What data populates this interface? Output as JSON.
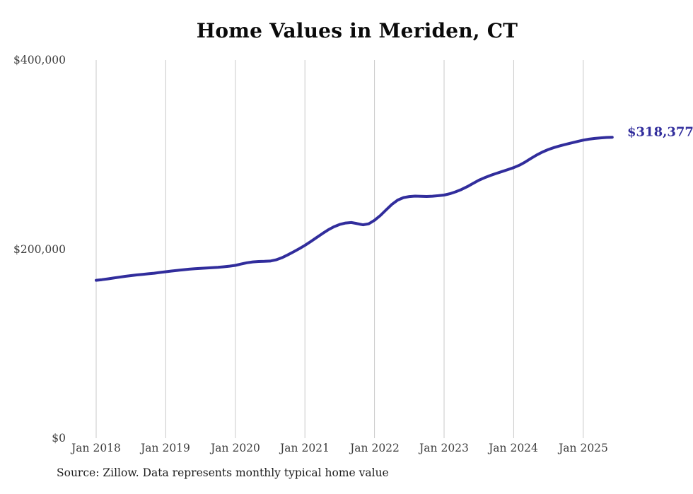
{
  "page": {
    "background": "#ffffff"
  },
  "chart": {
    "title": "Home Values in Meriden, CT",
    "end_label": "$318,377",
    "source_note": "Source: Zillow. Data represents monthly typical home value",
    "colors": {
      "line": "#312d9c",
      "end_label": "#312d9c",
      "grid": "#c9c9c9",
      "axis_text": "#3e3e3e",
      "title_text": "#0a0a0a",
      "source_text": "#1d1d1d"
    }
  },
  "chart_data": {
    "type": "line",
    "title": "Home Values in Meriden, CT",
    "xlabel": "",
    "ylabel": "",
    "ylim": [
      0,
      400000
    ],
    "grid": "vertical-only",
    "legend": "none",
    "y_ticks": [
      {
        "value": 0,
        "label": "$0"
      },
      {
        "value": 200000,
        "label": "$200,000"
      },
      {
        "value": 400000,
        "label": "$400,000"
      }
    ],
    "x_tick_labels": [
      "Jan 2018",
      "Jan 2019",
      "Jan 2020",
      "Jan 2021",
      "Jan 2022",
      "Jan 2023",
      "Jan 2024",
      "Jan 2025"
    ],
    "series": [
      {
        "name": "Monthly typical home value",
        "color": "#312d9c",
        "x": [
          "2018-01",
          "2018-02",
          "2018-03",
          "2018-04",
          "2018-05",
          "2018-06",
          "2018-07",
          "2018-08",
          "2018-09",
          "2018-10",
          "2018-11",
          "2018-12",
          "2019-01",
          "2019-02",
          "2019-03",
          "2019-04",
          "2019-05",
          "2019-06",
          "2019-07",
          "2019-08",
          "2019-09",
          "2019-10",
          "2019-11",
          "2019-12",
          "2020-01",
          "2020-02",
          "2020-03",
          "2020-04",
          "2020-05",
          "2020-06",
          "2020-07",
          "2020-08",
          "2020-09",
          "2020-10",
          "2020-11",
          "2020-12",
          "2021-01",
          "2021-02",
          "2021-03",
          "2021-04",
          "2021-05",
          "2021-06",
          "2021-07",
          "2021-08",
          "2021-09",
          "2021-10",
          "2021-11",
          "2021-12",
          "2022-01",
          "2022-02",
          "2022-03",
          "2022-04",
          "2022-05",
          "2022-06",
          "2022-07",
          "2022-08",
          "2022-09",
          "2022-10",
          "2022-11",
          "2022-12",
          "2023-01",
          "2023-02",
          "2023-03",
          "2023-04",
          "2023-05",
          "2023-06",
          "2023-07",
          "2023-08",
          "2023-09",
          "2023-10",
          "2023-11",
          "2023-12",
          "2024-01",
          "2024-02",
          "2024-03",
          "2024-04",
          "2024-05",
          "2024-06",
          "2024-07",
          "2024-08",
          "2024-09",
          "2024-10",
          "2024-11",
          "2024-12",
          "2025-01",
          "2025-02",
          "2025-03",
          "2025-04",
          "2025-05",
          "2025-06"
        ],
        "values": [
          167000,
          167700,
          168500,
          169400,
          170300,
          171200,
          172000,
          172700,
          173300,
          173900,
          174500,
          175300,
          176100,
          176800,
          177500,
          178200,
          178800,
          179300,
          179700,
          180000,
          180300,
          180700,
          181300,
          182000,
          182800,
          184200,
          185600,
          186500,
          186900,
          187100,
          187400,
          188600,
          190800,
          193800,
          197000,
          200400,
          204000,
          208000,
          212200,
          216400,
          220300,
          223600,
          226100,
          227600,
          228100,
          227000,
          225700,
          226800,
          230500,
          235500,
          241500,
          247300,
          251900,
          254500,
          255600,
          256100,
          255900,
          255700,
          256000,
          256500,
          257200,
          258600,
          260600,
          263100,
          266100,
          269500,
          272900,
          275600,
          278000,
          280100,
          282100,
          284100,
          286200,
          288800,
          292200,
          296000,
          299700,
          302800,
          305400,
          307500,
          309300,
          310900,
          312400,
          313900,
          315300,
          316300,
          317100,
          317700,
          318100,
          318377
        ]
      }
    ],
    "end_annotation": {
      "text": "$318,377",
      "value": 318377,
      "x": "2025-06"
    }
  }
}
